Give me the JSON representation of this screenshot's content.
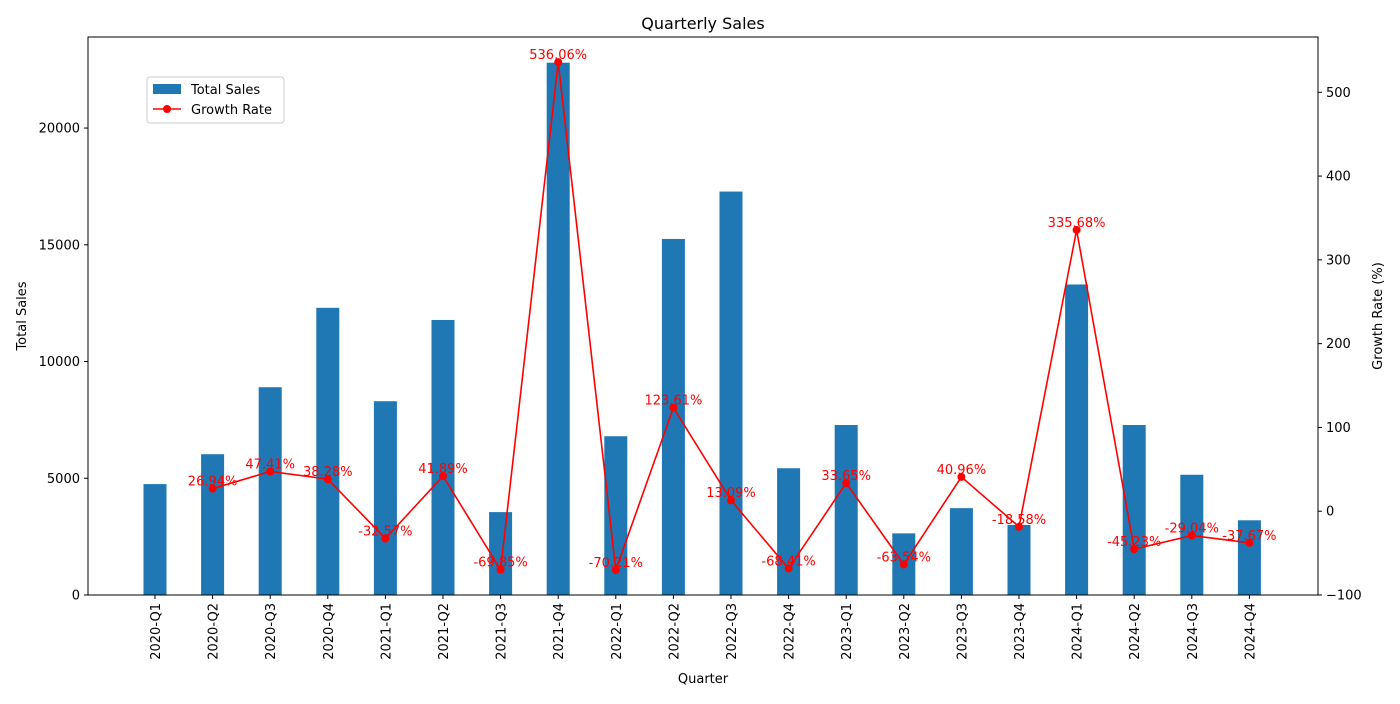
{
  "chart_data": {
    "type": "bar+line",
    "title": "Quarterly Sales",
    "xlabel": "Quarter",
    "ylabel_left": "Total Sales",
    "ylabel_right": "Growth Rate (%)",
    "categories": [
      "2020-Q1",
      "2020-Q2",
      "2020-Q3",
      "2020-Q4",
      "2021-Q1",
      "2021-Q2",
      "2021-Q3",
      "2021-Q4",
      "2022-Q1",
      "2022-Q2",
      "2022-Q3",
      "2022-Q4",
      "2023-Q1",
      "2023-Q2",
      "2023-Q3",
      "2023-Q4",
      "2024-Q1",
      "2024-Q2",
      "2024-Q3",
      "2024-Q4"
    ],
    "ylim_left": [
      0,
      23900
    ],
    "yticks_left": [
      0,
      5000,
      10000,
      15000,
      20000
    ],
    "ylim_right": [
      -100,
      566
    ],
    "yticks_right": [
      -100,
      0,
      100,
      200,
      300,
      400,
      500
    ],
    "legend_position": "upper-left",
    "colors": {
      "bars": "#1f77b4",
      "line": "#ff0000",
      "labels": "#ff0000"
    },
    "series": [
      {
        "name": "Total Sales",
        "axis": "left",
        "kind": "bar",
        "values": [
          4750,
          6030,
          8900,
          12300,
          8300,
          11780,
          3550,
          22800,
          6800,
          15250,
          17280,
          5430,
          7280,
          2640,
          3720,
          3000,
          13300,
          7280,
          5150,
          3200
        ]
      },
      {
        "name": "Growth Rate",
        "axis": "right",
        "kind": "line",
        "values": [
          null,
          26.94,
          47.41,
          38.28,
          -32.57,
          41.89,
          -69.85,
          536.06,
          -70.21,
          123.61,
          13.09,
          -68.41,
          33.65,
          -63.54,
          40.96,
          -18.58,
          335.68,
          -45.23,
          -29.04,
          -37.67
        ],
        "labels": [
          "",
          "26.94%",
          "47.41%",
          "38.28%",
          "-32.57%",
          "41.89%",
          "-69.85%",
          "536.06%",
          "-70.21%",
          "123.61%",
          "13.09%",
          "-68.41%",
          "33.65%",
          "-63.54%",
          "40.96%",
          "-18.58%",
          "335.68%",
          "-45.23%",
          "-29.04%",
          "-37.67%"
        ]
      }
    ]
  }
}
